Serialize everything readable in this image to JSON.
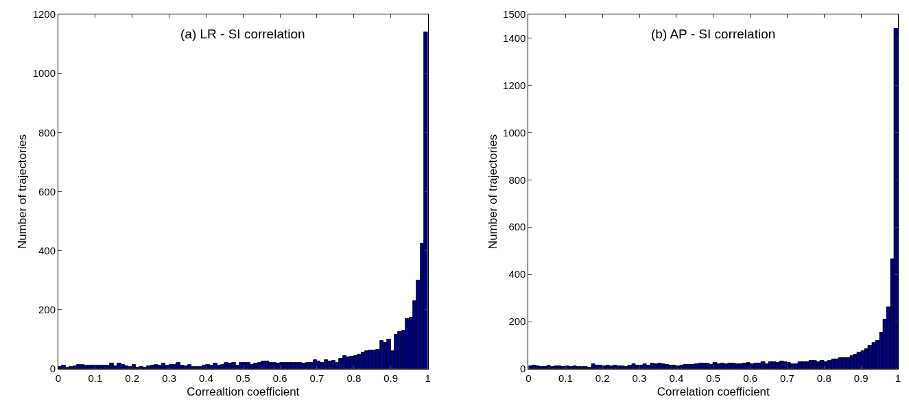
{
  "chart_data": [
    {
      "type": "histogram",
      "title": "(a) LR - SI correlation",
      "xlabel": "Correaltion coefficient",
      "ylabel": "Number of trajectories",
      "color": "#00007f",
      "bins": [
        0,
        0.01,
        0.02,
        0.03,
        0.04,
        0.05,
        0.06,
        0.07,
        0.08,
        0.09,
        0.1,
        0.11,
        0.12,
        0.13,
        0.14,
        0.15,
        0.16,
        0.17,
        0.18,
        0.19,
        0.2,
        0.21,
        0.22,
        0.23,
        0.24,
        0.25,
        0.26,
        0.27,
        0.28,
        0.29,
        0.3,
        0.31,
        0.32,
        0.33,
        0.34,
        0.35,
        0.36,
        0.37,
        0.38,
        0.39,
        0.4,
        0.41,
        0.42,
        0.43,
        0.44,
        0.45,
        0.46,
        0.47,
        0.48,
        0.49,
        0.5,
        0.51,
        0.52,
        0.53,
        0.54,
        0.55,
        0.56,
        0.57,
        0.58,
        0.59,
        0.6,
        0.61,
        0.62,
        0.63,
        0.64,
        0.65,
        0.66,
        0.67,
        0.68,
        0.69,
        0.7,
        0.71,
        0.72,
        0.73,
        0.74,
        0.75,
        0.76,
        0.77,
        0.78,
        0.79,
        0.8,
        0.81,
        0.82,
        0.83,
        0.84,
        0.85,
        0.86,
        0.87,
        0.88,
        0.89,
        0.9,
        0.91,
        0.92,
        0.93,
        0.94,
        0.95,
        0.96,
        0.97,
        0.98,
        0.99,
        1
      ],
      "values": [
        8,
        12,
        5,
        6,
        10,
        15,
        15,
        12,
        12,
        12,
        12,
        12,
        12,
        12,
        18,
        10,
        18,
        14,
        10,
        8,
        14,
        5,
        8,
        5,
        10,
        12,
        15,
        12,
        18,
        12,
        15,
        15,
        20,
        12,
        10,
        15,
        8,
        8,
        8,
        12,
        15,
        12,
        18,
        12,
        15,
        20,
        18,
        22,
        12,
        20,
        20,
        22,
        15,
        18,
        22,
        25,
        25,
        20,
        22,
        18,
        22,
        22,
        22,
        22,
        22,
        22,
        18,
        20,
        20,
        30,
        25,
        22,
        30,
        25,
        28,
        20,
        35,
        45,
        40,
        42,
        45,
        48,
        55,
        60,
        62,
        62,
        65,
        95,
        88,
        100,
        60,
        115,
        125,
        130,
        170,
        175,
        230,
        300,
        425,
        1140
      ],
      "xlim": [
        0,
        1
      ],
      "xticks": [
        0,
        0.1,
        0.2,
        0.3,
        0.4,
        0.5,
        0.6,
        0.7,
        0.8,
        0.9,
        1
      ],
      "ylim": [
        0,
        1200
      ],
      "yticks": [
        0,
        200,
        400,
        600,
        800,
        1000,
        1200
      ]
    },
    {
      "type": "histogram",
      "title": "(b) AP - SI correlation",
      "xlabel": "Correlation coefficient",
      "ylabel": "Number of trajectories",
      "color": "#00007f",
      "bins": [
        0,
        0.01,
        0.02,
        0.03,
        0.04,
        0.05,
        0.06,
        0.07,
        0.08,
        0.09,
        0.1,
        0.11,
        0.12,
        0.13,
        0.14,
        0.15,
        0.16,
        0.17,
        0.18,
        0.19,
        0.2,
        0.21,
        0.22,
        0.23,
        0.24,
        0.25,
        0.26,
        0.27,
        0.28,
        0.29,
        0.3,
        0.31,
        0.32,
        0.33,
        0.34,
        0.35,
        0.36,
        0.37,
        0.38,
        0.39,
        0.4,
        0.41,
        0.42,
        0.43,
        0.44,
        0.45,
        0.46,
        0.47,
        0.48,
        0.49,
        0.5,
        0.51,
        0.52,
        0.53,
        0.54,
        0.55,
        0.56,
        0.57,
        0.58,
        0.59,
        0.6,
        0.61,
        0.62,
        0.63,
        0.64,
        0.65,
        0.66,
        0.67,
        0.68,
        0.69,
        0.7,
        0.71,
        0.72,
        0.73,
        0.74,
        0.75,
        0.76,
        0.77,
        0.78,
        0.79,
        0.8,
        0.81,
        0.82,
        0.83,
        0.84,
        0.85,
        0.86,
        0.87,
        0.88,
        0.89,
        0.9,
        0.91,
        0.92,
        0.93,
        0.94,
        0.95,
        0.96,
        0.97,
        0.98,
        0.99,
        1
      ],
      "values": [
        12,
        15,
        12,
        10,
        8,
        15,
        10,
        12,
        12,
        10,
        12,
        10,
        12,
        8,
        10,
        8,
        5,
        20,
        15,
        15,
        12,
        15,
        12,
        15,
        12,
        12,
        10,
        15,
        20,
        15,
        15,
        20,
        15,
        22,
        20,
        22,
        20,
        18,
        15,
        15,
        12,
        15,
        18,
        18,
        18,
        20,
        22,
        22,
        22,
        18,
        25,
        20,
        22,
        20,
        22,
        22,
        20,
        20,
        22,
        25,
        20,
        22,
        22,
        28,
        20,
        30,
        28,
        25,
        32,
        30,
        25,
        20,
        20,
        30,
        28,
        30,
        35,
        35,
        30,
        35,
        30,
        35,
        40,
        42,
        45,
        45,
        45,
        55,
        60,
        70,
        75,
        85,
        100,
        110,
        120,
        155,
        210,
        260,
        465,
        1440
      ],
      "xlim": [
        0,
        1
      ],
      "xticks": [
        0,
        0.1,
        0.2,
        0.3,
        0.4,
        0.5,
        0.6,
        0.7,
        0.8,
        0.9,
        1
      ],
      "ylim": [
        0,
        1500
      ],
      "yticks": [
        0,
        200,
        400,
        600,
        800,
        1000,
        1200,
        1400,
        1500
      ]
    }
  ]
}
